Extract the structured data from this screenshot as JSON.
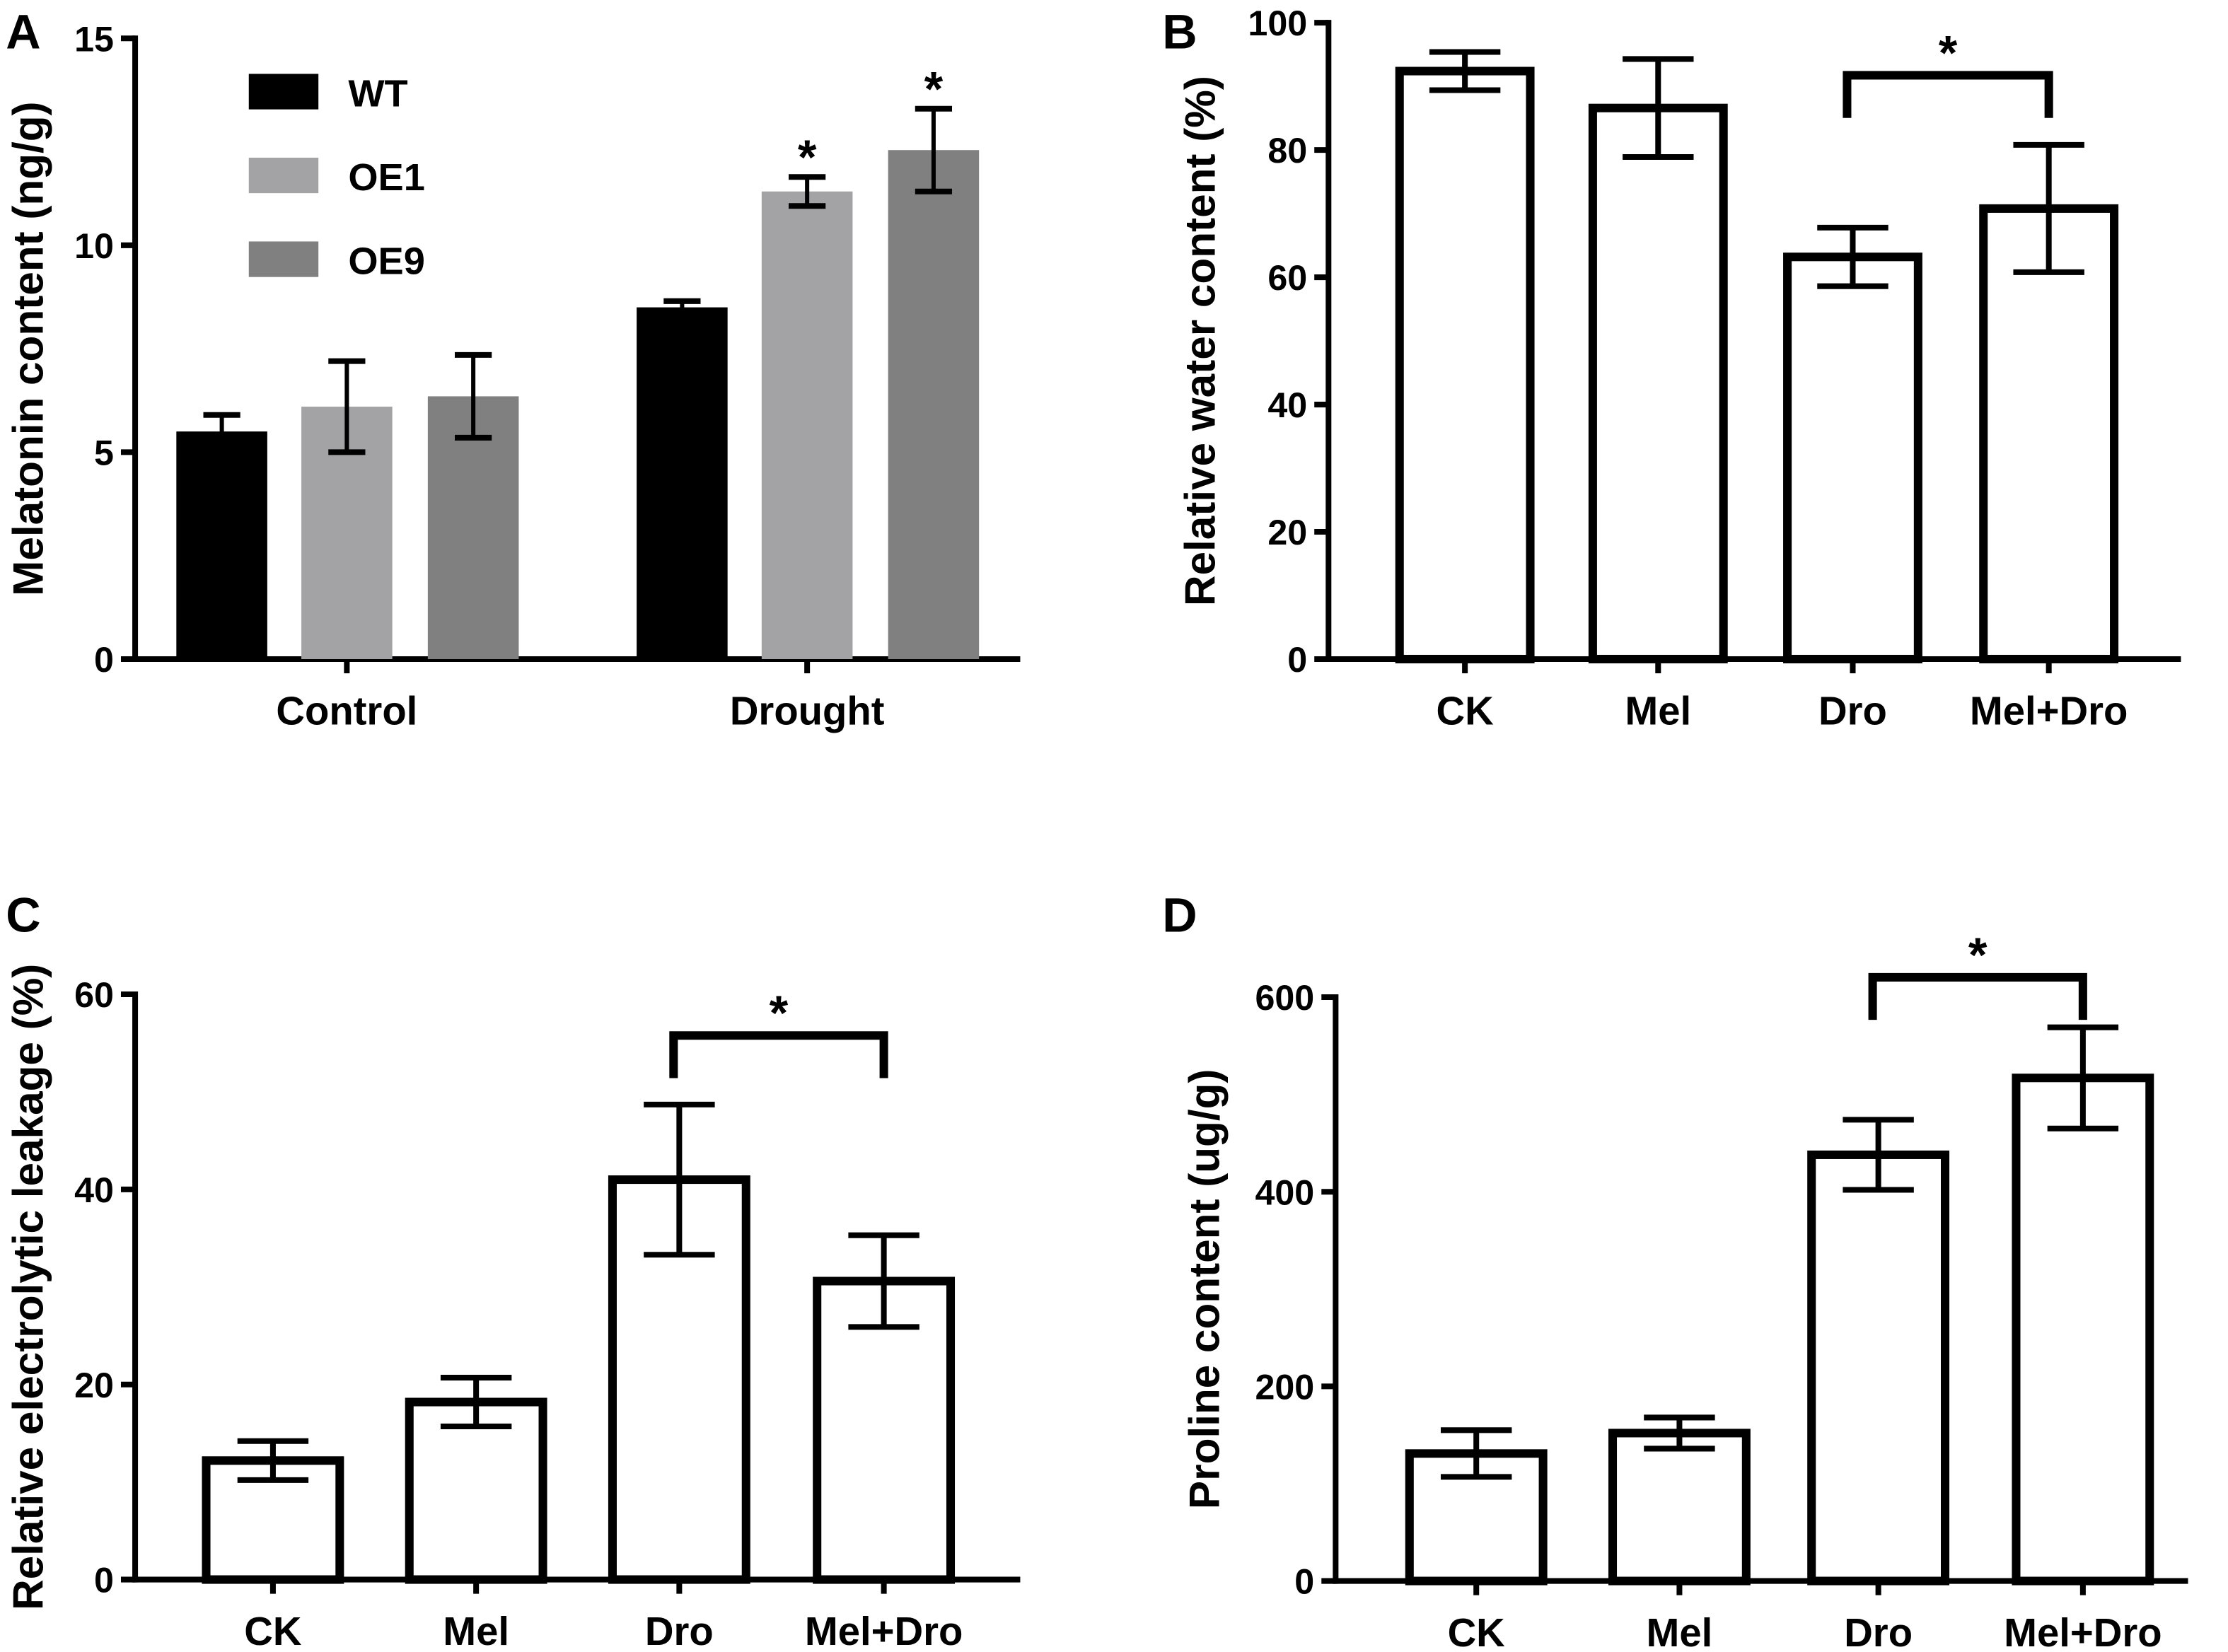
{
  "chart_data": [
    {
      "type": "bar",
      "panel": "A",
      "ylabel": "Melatonin content (ng/g)",
      "ylim": [
        0,
        15
      ],
      "yticks": [
        "0",
        "5",
        "10",
        "15"
      ],
      "categories": [
        "Control",
        "Drought"
      ],
      "legend_position": "top-left",
      "series": [
        {
          "name": "WT",
          "color": "#000000",
          "values": [
            5.5,
            8.5
          ],
          "errors": [
            0.4,
            0.15
          ],
          "significance": [
            "",
            ""
          ]
        },
        {
          "name": "OE1",
          "color": "#a3a3a6",
          "values": [
            6.1,
            11.3
          ],
          "errors": [
            1.1,
            0.35
          ],
          "significance": [
            "",
            "*"
          ]
        },
        {
          "name": "OE9",
          "color": "#808080",
          "values": [
            6.35,
            12.3
          ],
          "errors": [
            1.0,
            1.0
          ],
          "significance": [
            "",
            "*"
          ]
        }
      ]
    },
    {
      "type": "bar",
      "panel": "B",
      "ylabel": "Relative water content (%)",
      "ylim": [
        0,
        100
      ],
      "yticks": [
        "0",
        "20",
        "40",
        "60",
        "80",
        "100"
      ],
      "categories": [
        "CK",
        "Mel",
        "Dro",
        "Mel+Dro"
      ],
      "values": [
        92.4,
        86.6,
        63.2,
        70.8
      ],
      "errors": [
        3,
        7.7,
        4.6,
        10
      ],
      "comparison": {
        "between": [
          "Dro",
          "Mel+Dro"
        ],
        "label": "*"
      }
    },
    {
      "type": "bar",
      "panel": "C",
      "ylabel": "Relative electrolytic leakage (%)",
      "ylim": [
        0,
        60
      ],
      "yticks": [
        "0",
        "20",
        "40",
        "60"
      ],
      "categories": [
        "CK",
        "Mel",
        "Dro",
        "Mel+Dro"
      ],
      "values": [
        12.2,
        18.2,
        41,
        30.6
      ],
      "errors": [
        2,
        2.5,
        7.7,
        4.7
      ],
      "comparison": {
        "between": [
          "Dro",
          "Mel+Dro"
        ],
        "label": "*"
      }
    },
    {
      "type": "bar",
      "panel": "D",
      "ylabel": "Proline content (ug/g)",
      "ylim": [
        0,
        600
      ],
      "yticks": [
        "0",
        "200",
        "400",
        "600"
      ],
      "categories": [
        "CK",
        "Mel",
        "Dro",
        "Mel+Dro"
      ],
      "values": [
        131,
        152,
        438,
        517
      ],
      "errors": [
        24,
        16,
        36,
        52
      ],
      "comparison": {
        "between": [
          "Dro",
          "Mel+Dro"
        ],
        "label": "*"
      }
    }
  ]
}
